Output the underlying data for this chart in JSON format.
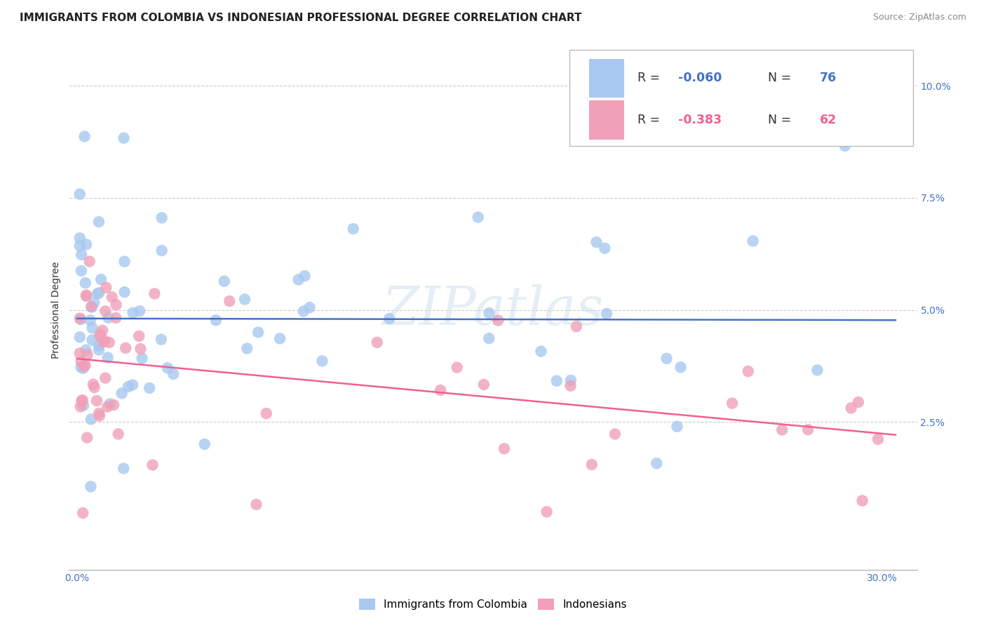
{
  "title": "IMMIGRANTS FROM COLOMBIA VS INDONESIAN PROFESSIONAL DEGREE CORRELATION CHART",
  "source": "Source: ZipAtlas.com",
  "ylabel": "Professional Degree",
  "xlabel_ticks": [
    "0.0%",
    "30.0%"
  ],
  "xlabel_vals": [
    0.0,
    0.3
  ],
  "ylabel_ticks": [
    "10.0%",
    "7.5%",
    "5.0%",
    "2.5%"
  ],
  "ylabel_vals": [
    0.1,
    0.075,
    0.05,
    0.025
  ],
  "xlim": [
    -0.003,
    0.313
  ],
  "ylim": [
    -0.008,
    0.108
  ],
  "colombia_color": "#A8C8F0",
  "indonesia_color": "#F0A0B8",
  "colombia_line_color": "#4472C4",
  "indonesia_line_color": "#F06090",
  "R_colombia": -0.06,
  "N_colombia": 76,
  "R_indonesia": -0.383,
  "N_indonesia": 62,
  "legend_label_colombia": "Immigrants from Colombia",
  "legend_label_indonesia": "Indonesians",
  "watermark": "ZIPatlas",
  "background_color": "#FFFFFF",
  "grid_color": "#CCCCCC",
  "title_fontsize": 11,
  "axis_label_fontsize": 10,
  "tick_fontsize": 10,
  "legend_fontsize": 12
}
